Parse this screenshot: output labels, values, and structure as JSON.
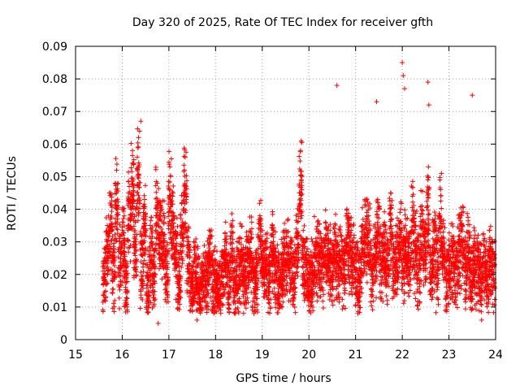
{
  "chart_data": {
    "type": "scatter",
    "title": "Day 320 of 2025, Rate Of TEC Index for receiver gfth",
    "xlabel": "GPS time / hours",
    "ylabel": "ROTI / TECUs",
    "xlim": [
      15,
      24
    ],
    "ylim": [
      0,
      0.09
    ],
    "xticks": [
      15,
      16,
      17,
      18,
      19,
      20,
      21,
      22,
      23,
      24
    ],
    "xtick_labels": [
      "15",
      "16",
      "17",
      "18",
      "19",
      "20",
      "21",
      "22",
      "23",
      "24"
    ],
    "yticks": [
      0,
      0.01,
      0.02,
      0.03,
      0.04,
      0.05,
      0.06,
      0.07,
      0.08,
      0.09
    ],
    "ytick_labels": [
      "0",
      "0.01",
      "0.02",
      "0.03",
      "0.04",
      "0.05",
      "0.06",
      "0.07",
      "0.08",
      "0.09"
    ],
    "grid": true,
    "marker": "+",
    "series_color": "#ff0000",
    "series": [
      {
        "name": "ROTI",
        "note": "dense scatter of ROTI values between ~15.6 h and 24 h; representative samples",
        "x": [
          15.62,
          15.68,
          15.75,
          15.82,
          15.88,
          15.95,
          16.02,
          16.08,
          16.15,
          16.22,
          16.28,
          16.35,
          16.42,
          16.48,
          16.55,
          16.62,
          16.68,
          16.75,
          16.82,
          16.88,
          16.95,
          17.02,
          17.08,
          17.15,
          17.22,
          17.28,
          17.35,
          17.42,
          17.48,
          17.55,
          17.62,
          17.68,
          17.75,
          17.82,
          17.88,
          17.95,
          18.02,
          18.08,
          18.15,
          18.22,
          18.28,
          18.35,
          18.42,
          18.48,
          18.55,
          18.62,
          18.68,
          18.75,
          18.82,
          18.88,
          18.95,
          19.02,
          19.08,
          19.15,
          19.22,
          19.28,
          19.35,
          19.42,
          19.48,
          19.55,
          19.62,
          19.68,
          19.75,
          19.82,
          19.88,
          19.95,
          20.02,
          20.08,
          20.15,
          20.22,
          20.28,
          20.35,
          20.42,
          20.48,
          20.55,
          20.62,
          20.68,
          20.75,
          20.82,
          20.88,
          20.95,
          21.02,
          21.08,
          21.15,
          21.22,
          21.28,
          21.35,
          21.42,
          21.48,
          21.55,
          21.62,
          21.68,
          21.75,
          21.82,
          21.88,
          21.95,
          22.02,
          22.08,
          22.15,
          22.22,
          22.28,
          22.35,
          22.42,
          22.48,
          22.55,
          22.62,
          22.68,
          22.75,
          22.82,
          22.88,
          22.95,
          23.02,
          23.08,
          23.15,
          23.22,
          23.28,
          23.35,
          23.42,
          23.48,
          23.55,
          23.62,
          23.68,
          23.75,
          23.82,
          23.88,
          23.95
        ],
        "y": [
          0.025,
          0.035,
          0.045,
          0.028,
          0.052,
          0.031,
          0.04,
          0.022,
          0.047,
          0.058,
          0.036,
          0.062,
          0.029,
          0.043,
          0.019,
          0.034,
          0.024,
          0.048,
          0.041,
          0.038,
          0.027,
          0.053,
          0.044,
          0.033,
          0.021,
          0.042,
          0.056,
          0.03,
          0.018,
          0.026,
          0.023,
          0.019,
          0.021,
          0.025,
          0.032,
          0.024,
          0.02,
          0.018,
          0.027,
          0.03,
          0.022,
          0.035,
          0.019,
          0.026,
          0.031,
          0.024,
          0.028,
          0.033,
          0.021,
          0.025,
          0.038,
          0.029,
          0.03,
          0.024,
          0.035,
          0.027,
          0.022,
          0.026,
          0.031,
          0.033,
          0.028,
          0.024,
          0.036,
          0.058,
          0.03,
          0.027,
          0.022,
          0.025,
          0.03,
          0.033,
          0.028,
          0.036,
          0.031,
          0.026,
          0.034,
          0.029,
          0.032,
          0.027,
          0.038,
          0.035,
          0.03,
          0.026,
          0.022,
          0.035,
          0.041,
          0.038,
          0.026,
          0.032,
          0.042,
          0.03,
          0.036,
          0.029,
          0.045,
          0.028,
          0.033,
          0.039,
          0.03,
          0.037,
          0.031,
          0.044,
          0.035,
          0.028,
          0.041,
          0.034,
          0.049,
          0.026,
          0.036,
          0.03,
          0.046,
          0.033,
          0.024,
          0.029,
          0.031,
          0.025,
          0.034,
          0.039,
          0.028,
          0.033,
          0.022,
          0.03,
          0.027,
          0.025,
          0.029,
          0.024,
          0.03,
          0.027
        ],
        "extremes": [
          {
            "x": 16.4,
            "y": 0.067
          },
          {
            "x": 20.6,
            "y": 0.078
          },
          {
            "x": 21.45,
            "y": 0.073
          },
          {
            "x": 22.0,
            "y": 0.085
          },
          {
            "x": 22.02,
            "y": 0.081
          },
          {
            "x": 22.05,
            "y": 0.077
          },
          {
            "x": 22.55,
            "y": 0.079
          },
          {
            "x": 22.57,
            "y": 0.072
          },
          {
            "x": 23.5,
            "y": 0.075
          },
          {
            "x": 16.77,
            "y": 0.005
          },
          {
            "x": 17.6,
            "y": 0.006
          },
          {
            "x": 23.7,
            "y": 0.006
          }
        ]
      }
    ]
  }
}
